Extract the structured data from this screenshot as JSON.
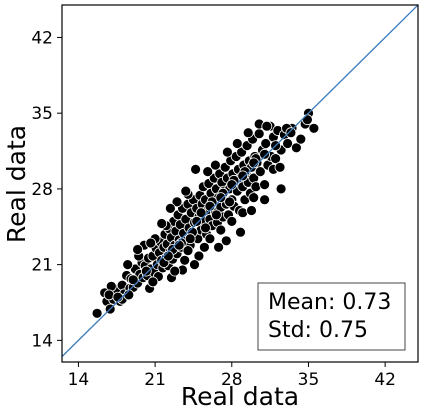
{
  "chart_data": {
    "type": "scatter",
    "title": "",
    "xlabel": "Real data",
    "ylabel": "Real data",
    "xlim": [
      12.5,
      45.0
    ],
    "ylim": [
      12.0,
      45.0
    ],
    "xticks": [
      14,
      21,
      28,
      35,
      42
    ],
    "yticks": [
      14,
      21,
      28,
      35,
      42
    ],
    "grid": false,
    "marker_color": "#000000",
    "marker_edge_color": "#ffffff",
    "diagonal_color": "#3b7bbd",
    "stats_box": {
      "mean_text": "Mean: 0.73",
      "std_text": "Std: 0.75"
    },
    "points": [
      [
        15.7,
        16.5
      ],
      [
        16.4,
        18.4
      ],
      [
        16.6,
        17.6
      ],
      [
        16.9,
        16.9
      ],
      [
        17.2,
        17.8
      ],
      [
        17.5,
        18.7
      ],
      [
        17.8,
        17.6
      ],
      [
        18.0,
        19.1
      ],
      [
        18.2,
        18.3
      ],
      [
        18.4,
        20.0
      ],
      [
        18.7,
        18.8
      ],
      [
        18.8,
        19.7
      ],
      [
        19.0,
        18.9
      ],
      [
        19.2,
        20.6
      ],
      [
        19.4,
        19.3
      ],
      [
        19.6,
        20.1
      ],
      [
        19.8,
        21.2
      ],
      [
        19.9,
        19.8
      ],
      [
        20.1,
        20.9
      ],
      [
        20.3,
        20.0
      ],
      [
        20.4,
        21.6
      ],
      [
        20.5,
        18.8
      ],
      [
        20.6,
        20.6
      ],
      [
        20.8,
        21.8
      ],
      [
        20.9,
        20.3
      ],
      [
        21.1,
        22.5
      ],
      [
        21.2,
        21.0
      ],
      [
        21.3,
        19.9
      ],
      [
        21.4,
        22.1
      ],
      [
        21.5,
        23.1
      ],
      [
        21.6,
        21.4
      ],
      [
        21.7,
        20.7
      ],
      [
        21.8,
        22.6
      ],
      [
        21.9,
        23.8
      ],
      [
        22.0,
        21.6
      ],
      [
        22.1,
        22.9
      ],
      [
        22.2,
        20.9
      ],
      [
        22.3,
        24.3
      ],
      [
        22.4,
        22.2
      ],
      [
        22.5,
        23.5
      ],
      [
        22.6,
        21.5
      ],
      [
        22.7,
        25.0
      ],
      [
        22.8,
        22.8
      ],
      [
        22.9,
        24.1
      ],
      [
        23.0,
        22.0
      ],
      [
        23.1,
        25.6
      ],
      [
        23.2,
        23.3
      ],
      [
        23.3,
        24.7
      ],
      [
        23.4,
        22.6
      ],
      [
        23.5,
        26.2
      ],
      [
        23.6,
        23.9
      ],
      [
        23.7,
        21.4
      ],
      [
        23.8,
        25.2
      ],
      [
        23.9,
        23.2
      ],
      [
        24.0,
        26.6
      ],
      [
        24.1,
        24.4
      ],
      [
        24.2,
        22.8
      ],
      [
        24.3,
        25.8
      ],
      [
        24.4,
        23.7
      ],
      [
        24.5,
        27.0
      ],
      [
        24.6,
        24.9
      ],
      [
        24.7,
        29.8
      ],
      [
        24.8,
        26.2
      ],
      [
        24.9,
        23.4
      ],
      [
        25.0,
        25.4
      ],
      [
        25.1,
        27.4
      ],
      [
        25.2,
        24.2
      ],
      [
        25.3,
        26.6
      ],
      [
        25.4,
        28.2
      ],
      [
        25.5,
        25.0
      ],
      [
        25.6,
        27.0
      ],
      [
        25.7,
        23.8
      ],
      [
        25.8,
        26.0
      ],
      [
        25.9,
        28.5
      ],
      [
        26.0,
        25.2
      ],
      [
        26.1,
        27.6
      ],
      [
        26.2,
        24.6
      ],
      [
        26.3,
        26.6
      ],
      [
        26.4,
        29.0
      ],
      [
        26.5,
        25.8
      ],
      [
        26.6,
        28.0
      ],
      [
        26.7,
        24.9
      ],
      [
        26.8,
        27.2
      ],
      [
        26.9,
        29.4
      ],
      [
        27.0,
        26.3
      ],
      [
        27.1,
        28.6
      ],
      [
        27.2,
        25.4
      ],
      [
        27.3,
        27.8
      ],
      [
        27.4,
        30.0
      ],
      [
        27.5,
        26.6
      ],
      [
        27.6,
        29.0
      ],
      [
        27.7,
        25.6
      ],
      [
        27.8,
        28.0
      ],
      [
        27.9,
        30.6
      ],
      [
        28.0,
        27.0
      ],
      [
        28.1,
        29.4
      ],
      [
        28.2,
        26.4
      ],
      [
        28.3,
        28.5
      ],
      [
        28.4,
        31.0
      ],
      [
        28.5,
        27.8
      ],
      [
        28.6,
        29.8
      ],
      [
        28.7,
        26.0
      ],
      [
        28.8,
        29.0
      ],
      [
        28.9,
        31.4
      ],
      [
        29.0,
        28.2
      ],
      [
        29.1,
        30.2
      ],
      [
        29.2,
        27.0
      ],
      [
        29.3,
        29.4
      ],
      [
        29.4,
        32.0
      ],
      [
        29.5,
        28.6
      ],
      [
        29.6,
        30.6
      ],
      [
        29.7,
        27.6
      ],
      [
        29.8,
        30.0
      ],
      [
        29.9,
        32.6
      ],
      [
        30.0,
        29.0
      ],
      [
        30.1,
        31.0
      ],
      [
        30.2,
        28.2
      ],
      [
        30.3,
        30.4
      ],
      [
        30.5,
        33.1
      ],
      [
        30.6,
        29.6
      ],
      [
        30.8,
        31.6
      ],
      [
        31.0,
        28.4
      ],
      [
        31.1,
        32.2
      ],
      [
        31.3,
        30.2
      ],
      [
        31.5,
        33.8
      ],
      [
        31.6,
        31.0
      ],
      [
        31.8,
        32.8
      ],
      [
        32.0,
        30.8
      ],
      [
        32.2,
        33.4
      ],
      [
        32.5,
        31.6
      ],
      [
        32.8,
        33.0
      ],
      [
        33.1,
        32.2
      ],
      [
        33.5,
        33.6
      ],
      [
        33.9,
        31.8
      ],
      [
        34.3,
        32.6
      ],
      [
        34.7,
        34.0
      ],
      [
        35.0,
        35.0
      ],
      [
        35.5,
        33.6
      ],
      [
        34.9,
        34.4
      ],
      [
        21.0,
        23.4
      ],
      [
        22.0,
        24.6
      ],
      [
        23.0,
        26.8
      ],
      [
        24.0,
        27.5
      ],
      [
        26.0,
        23.4
      ],
      [
        27.0,
        24.2
      ],
      [
        28.0,
        25.0
      ],
      [
        29.0,
        25.8
      ],
      [
        30.0,
        27.2
      ],
      [
        31.0,
        27.0
      ],
      [
        32.5,
        28.0
      ],
      [
        25.5,
        22.6
      ],
      [
        22.5,
        19.8
      ],
      [
        19.5,
        21.8
      ],
      [
        18.5,
        21.0
      ],
      [
        26.5,
        30.2
      ],
      [
        28.5,
        32.2
      ],
      [
        29.5,
        33.2
      ],
      [
        30.5,
        34.0
      ],
      [
        24.0,
        22.3
      ],
      [
        23.5,
        20.5
      ],
      [
        25.0,
        21.8
      ],
      [
        27.5,
        23.2
      ],
      [
        20.0,
        22.8
      ],
      [
        17.0,
        19.0
      ],
      [
        18.0,
        17.8
      ],
      [
        16.8,
        18.2
      ],
      [
        20.8,
        19.4
      ],
      [
        22.8,
        20.4
      ],
      [
        24.6,
        21.0
      ],
      [
        26.8,
        22.6
      ],
      [
        28.8,
        24.0
      ],
      [
        29.8,
        26.0
      ],
      [
        31.8,
        29.8
      ],
      [
        32.4,
        30.0
      ],
      [
        33.0,
        33.6
      ],
      [
        31.2,
        33.8
      ],
      [
        27.6,
        31.4
      ],
      [
        25.8,
        29.6
      ],
      [
        23.8,
        27.8
      ],
      [
        22.4,
        26.2
      ],
      [
        21.6,
        24.8
      ],
      [
        20.6,
        23.0
      ],
      [
        19.4,
        22.4
      ],
      [
        24.4,
        24.0
      ],
      [
        25.2,
        25.8
      ],
      [
        26.2,
        26.8
      ],
      [
        27.2,
        27.6
      ],
      [
        28.2,
        28.8
      ],
      [
        29.2,
        29.6
      ],
      [
        30.2,
        30.8
      ],
      [
        23.4,
        23.0
      ],
      [
        22.6,
        22.4
      ],
      [
        21.8,
        21.2
      ],
      [
        20.2,
        20.4
      ],
      [
        19.0,
        19.6
      ],
      [
        18.6,
        18.2
      ],
      [
        17.6,
        18.0
      ],
      [
        24.8,
        25.0
      ],
      [
        26.0,
        26.4
      ],
      [
        27.0,
        27.2
      ],
      [
        28.0,
        28.4
      ],
      [
        29.0,
        29.2
      ],
      [
        30.0,
        30.4
      ],
      [
        31.0,
        31.2
      ],
      [
        32.0,
        32.0
      ],
      [
        33.4,
        33.2
      ],
      [
        26.6,
        25.6
      ],
      [
        27.8,
        26.8
      ],
      [
        25.6,
        24.4
      ],
      [
        24.2,
        23.4
      ],
      [
        23.2,
        22.8
      ],
      [
        22.2,
        21.8
      ]
    ]
  }
}
